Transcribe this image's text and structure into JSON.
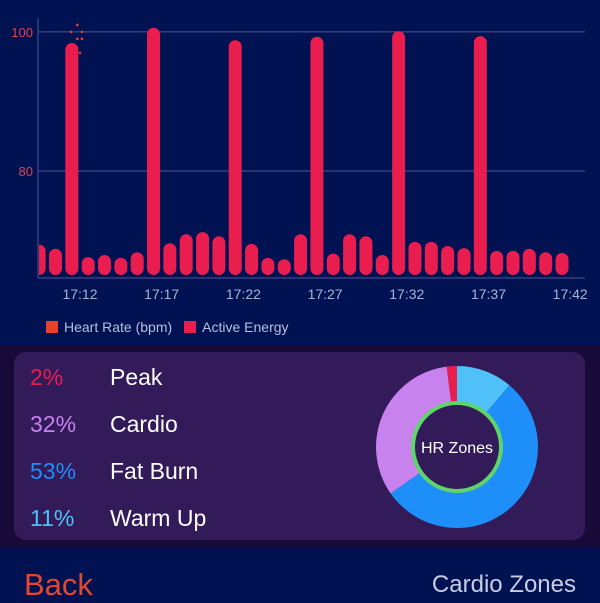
{
  "chart_data": {
    "type": "bar",
    "ylim": [
      64.6,
      102
    ],
    "y_ticks": [
      80,
      100
    ],
    "x_ticks": [
      "17:12",
      "17:17",
      "17:22",
      "17:27",
      "17:32",
      "17:37",
      "17:42"
    ],
    "grid": true,
    "legend_placement": "bottom-left",
    "series": [
      {
        "name": "Active Energy",
        "type": "bar",
        "color": "#e91e4e",
        "x": [
          "17:09:30",
          "17:10:30",
          "17:11:30",
          "17:12:30",
          "17:13:30",
          "17:14:30",
          "17:15:30",
          "17:16:30",
          "17:17:30",
          "17:18:30",
          "17:19:30",
          "17:20:30",
          "17:21:30",
          "17:22:30",
          "17:23:30",
          "17:24:30",
          "17:25:30",
          "17:26:30",
          "17:27:30",
          "17:28:30",
          "17:29:30",
          "17:30:30",
          "17:31:30",
          "17:32:30",
          "17:33:30",
          "17:34:30",
          "17:35:30",
          "17:36:30",
          "17:37:30",
          "17:38:30",
          "17:39:30",
          "17:40:30",
          "17:41:30"
        ],
        "values": [
          69.4,
          68.8,
          98.4,
          67.6,
          67.9,
          67.5,
          68.3,
          100.6,
          69.6,
          70.9,
          71.2,
          70.6,
          98.8,
          69.5,
          67.5,
          67.3,
          70.9,
          99.3,
          68.1,
          70.9,
          70.6,
          67.9,
          100.1,
          69.8,
          69.8,
          69.2,
          68.9,
          99.4,
          68.5,
          68.5,
          68.8,
          68.3,
          68.2
        ]
      },
      {
        "name": "Heart Rate (bpm)",
        "type": "scatter",
        "color": "#e8402a",
        "x": [
          "17:11:50",
          "17:11:27",
          "17:12:07",
          "17:11:50",
          "17:12:07",
          "17:12:00"
        ],
        "values": [
          101.0,
          100.0,
          100.0,
          99.0,
          99.0,
          97.0
        ]
      }
    ]
  },
  "colors": {
    "axis_y_label": "#e0404a",
    "axis_x_label": "#aab2d4",
    "grid": "#4a5890"
  },
  "zones": {
    "center_label": "HR Zones",
    "items": [
      {
        "pct": "2%",
        "value": 2,
        "name": "Peak",
        "color": "#e91e4e"
      },
      {
        "pct": "32%",
        "value": 32,
        "name": "Cardio",
        "color": "#c882ee"
      },
      {
        "pct": "53%",
        "value": 53,
        "name": "Fat Burn",
        "color": "#1e8ef8"
      },
      {
        "pct": "11%",
        "value": 11,
        "name": "Warm Up",
        "color": "#4fc1f8"
      }
    ],
    "ring_color": "#5fd46a"
  },
  "footer": {
    "back_label": "Back",
    "title": "Cardio Zones"
  }
}
